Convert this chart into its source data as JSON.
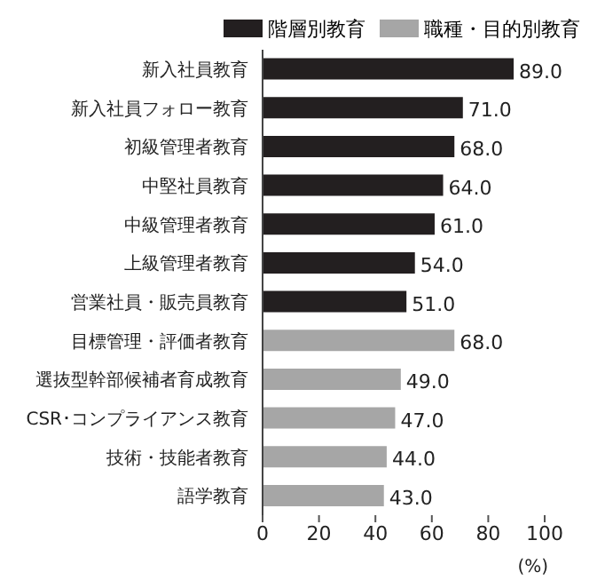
{
  "chart_data": {
    "type": "bar",
    "orientation": "horizontal",
    "stacked": true,
    "xlabel": "(%)",
    "categories": [
      "新入社員教育",
      "新入社員フォロー教育",
      "初級管理者教育",
      "中堅社員教育",
      "中級管理者教育",
      "上級管理者教育",
      "営業社員・販売員教育",
      "目標管理・評価者教育",
      "選抜型幹部候補者育成教育",
      "CSR･コンプライアンス教育",
      "技術・技能者教育",
      "語学教育"
    ],
    "series": [
      {
        "name": "階層別教育",
        "color": "#231f20",
        "values": [
          89,
          71,
          68,
          64,
          61,
          54,
          51,
          null,
          null,
          null,
          null,
          null
        ],
        "value_labels": [
          "89.0",
          "71.0",
          "68.0",
          "64.0",
          "61.0",
          "54.0",
          "51.0",
          null,
          null,
          null,
          null,
          null
        ]
      },
      {
        "name": "職種・目的別教育",
        "color": "#a6a6a6",
        "values": [
          null,
          null,
          null,
          null,
          null,
          null,
          null,
          68,
          49,
          47,
          44,
          43
        ],
        "value_labels": [
          null,
          null,
          null,
          null,
          null,
          null,
          null,
          "68.0",
          "49.0",
          "47.0",
          "44.0",
          "43.0"
        ]
      }
    ],
    "xlim": [
      0,
      100
    ],
    "xticks": [
      0,
      20,
      40,
      60,
      80,
      100
    ],
    "grid": false,
    "legend": "top right"
  }
}
